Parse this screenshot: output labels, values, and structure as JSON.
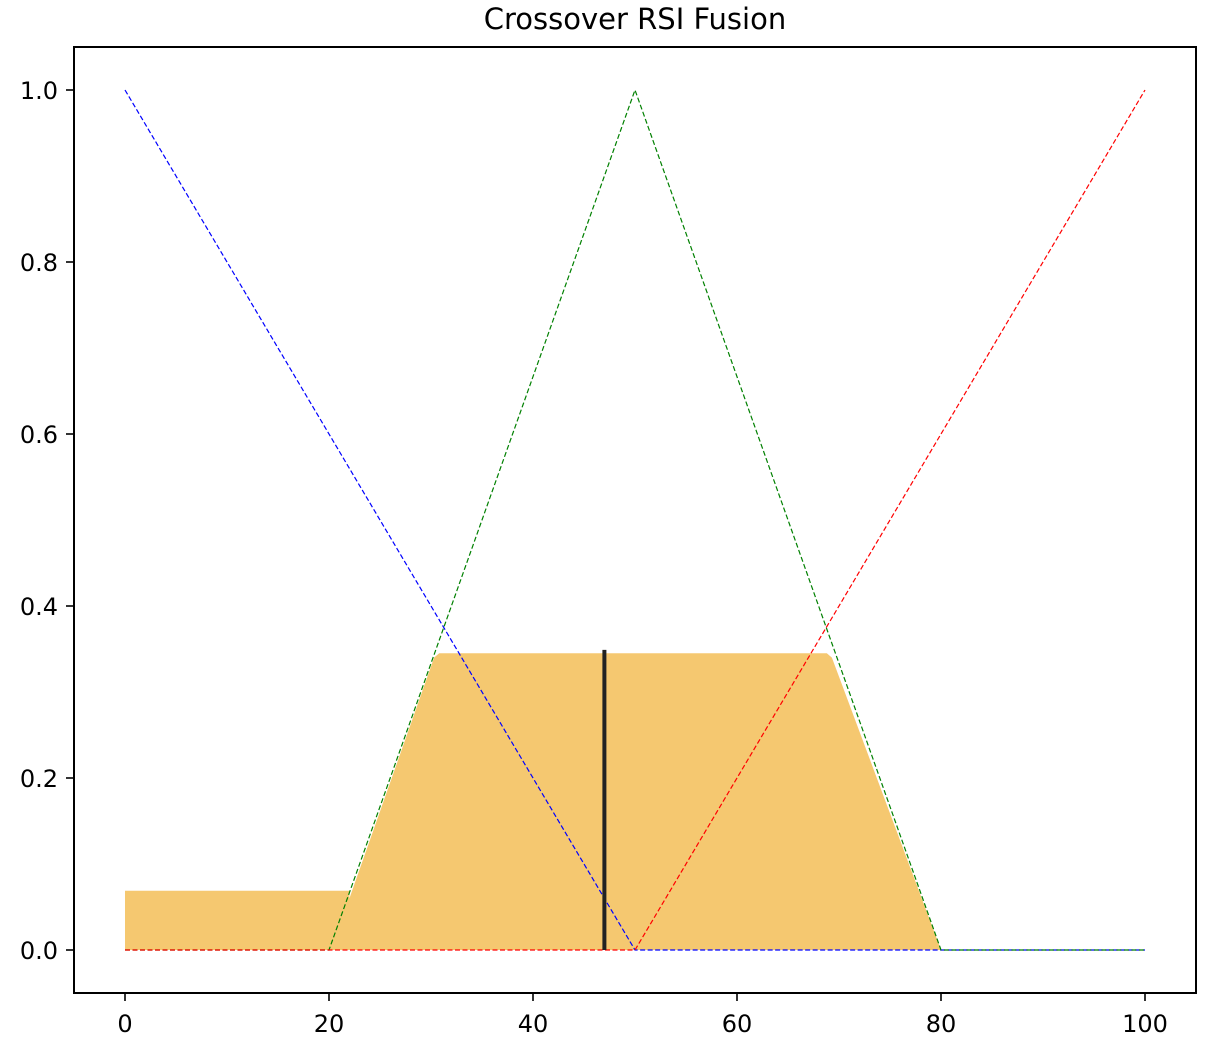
{
  "chart_data": {
    "type": "line",
    "title": "Crossover RSI Fusion",
    "xlabel": "",
    "ylabel": "",
    "xlim": [
      -5,
      105
    ],
    "ylim": [
      -0.05,
      1.05
    ],
    "grid": false,
    "x_ticks": [
      0,
      20,
      40,
      60,
      80,
      100
    ],
    "x_tick_labels": [
      "0",
      "20",
      "40",
      "60",
      "80",
      "100"
    ],
    "y_ticks": [
      0.0,
      0.2,
      0.4,
      0.6,
      0.8,
      1.0
    ],
    "y_tick_labels": [
      "0.0",
      "0.2",
      "0.4",
      "0.6",
      "0.8",
      "1.0"
    ],
    "series": [
      {
        "color": "#0000ff",
        "style": "dashed",
        "x": [
          0,
          50,
          100
        ],
        "y": [
          1.0,
          0.0,
          0.0
        ]
      },
      {
        "color": "#008000",
        "style": "dashed",
        "x": [
          0,
          20,
          50,
          80,
          100
        ],
        "y": [
          0.0,
          0.0,
          1.0,
          0.0,
          0.0
        ]
      },
      {
        "color": "#ff0000",
        "style": "dashed",
        "x": [
          0,
          50,
          100
        ],
        "y": [
          0.0,
          0.0,
          1.0
        ]
      }
    ],
    "aggregated_area": {
      "color": "#f5c870",
      "x": [
        0,
        0,
        22,
        22,
        30.3,
        30.8,
        68.8,
        69.3,
        80,
        100
      ],
      "y": [
        0.0,
        0.069,
        0.069,
        0.06,
        0.34,
        0.345,
        0.345,
        0.34,
        0.0,
        0.0
      ]
    },
    "defuzzified_value": {
      "x": 47,
      "y_top": 0.349,
      "color": "#222222"
    }
  }
}
